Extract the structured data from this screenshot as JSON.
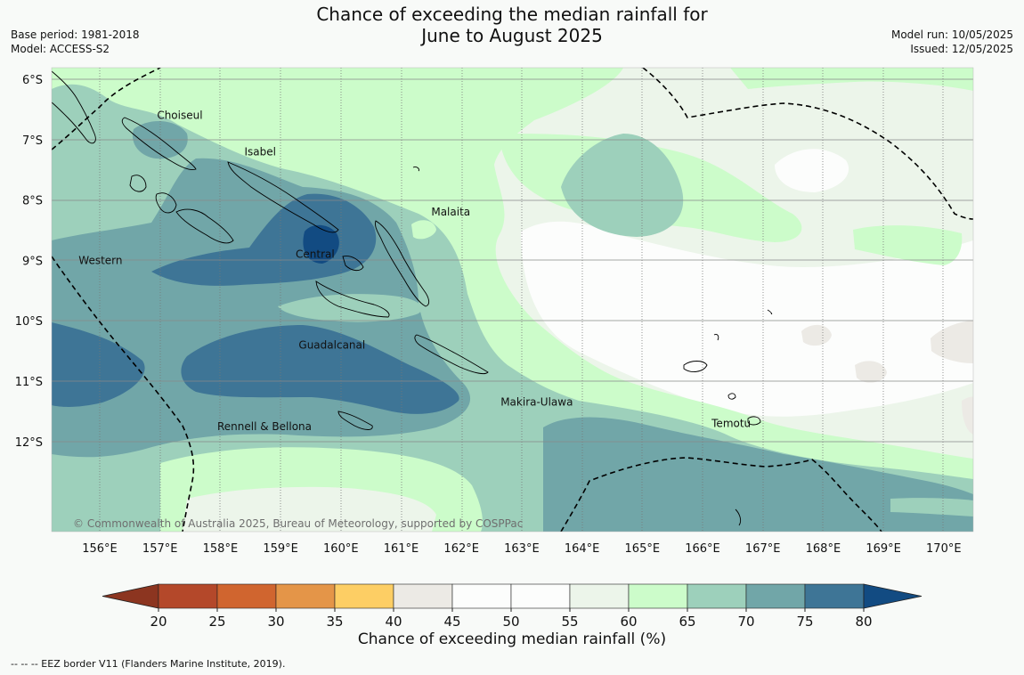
{
  "title": {
    "line1": "Chance of exceeding the median rainfall for",
    "line2": "June to August 2025"
  },
  "meta_left": {
    "base_period": "Base period: 1981-2018",
    "model": "Model: ACCESS-S2"
  },
  "meta_right": {
    "model_run": "Model run: 10/05/2025",
    "issued": "Issued: 12/05/2025"
  },
  "map": {
    "lat_labels": [
      "6°S",
      "7°S",
      "8°S",
      "9°S",
      "10°S",
      "11°S",
      "12°S"
    ],
    "lon_labels": [
      "156°E",
      "157°E",
      "158°E",
      "159°E",
      "160°E",
      "161°E",
      "162°E",
      "163°E",
      "164°E",
      "165°E",
      "166°E",
      "167°E",
      "168°E",
      "169°E",
      "170°E"
    ],
    "regions": [
      {
        "name": "Choiseul",
        "lon": 156.95,
        "lat": -6.6
      },
      {
        "name": "Isabel",
        "lon": 158.4,
        "lat": -7.2
      },
      {
        "name": "Malaita",
        "lon": 161.5,
        "lat": -8.2
      },
      {
        "name": "Western",
        "lon": 155.65,
        "lat": -9.0
      },
      {
        "name": "Central",
        "lon": 159.25,
        "lat": -8.9
      },
      {
        "name": "Guadalcanal",
        "lon": 159.3,
        "lat": -10.4
      },
      {
        "name": "Makira-Ulawa",
        "lon": 162.65,
        "lat": -11.35
      },
      {
        "name": "Temotu",
        "lon": 166.15,
        "lat": -11.7
      },
      {
        "name": "Rennell & Bellona",
        "lon": 157.95,
        "lat": -11.75
      }
    ],
    "copyright": "© Commonwealth of Australia 2025, Bureau of Meteorology, supported by COSPPac",
    "colors": {
      "ocean_light": "#fcfdfc",
      "c45_50": "#eceae5",
      "c55_60": "#ecf5ea",
      "c60_65": "#ccfcca",
      "c65_70": "#9dd0bb",
      "c70_75": "#71a6a8",
      "c75_80": "#3e7596",
      "c80_plus": "#124b82"
    }
  },
  "colorbar": {
    "ticks": [
      "20",
      "25",
      "30",
      "35",
      "40",
      "45",
      "50",
      "55",
      "60",
      "65",
      "70",
      "75",
      "80"
    ],
    "colors": [
      "#b4482a",
      "#d0652f",
      "#e49548",
      "#fdce64",
      "#eceae5",
      "#fcfdfc",
      "#fcfdfc",
      "#ecf5ea",
      "#ccfcca",
      "#9dd0bb",
      "#71a6a8",
      "#3e7596"
    ],
    "low_color": "#8c3520",
    "high_color": "#124b82",
    "label": "Chance of exceeding median rainfall (%)"
  },
  "footer": "--  --  -- EEZ border V11 (Flanders Marine Institute, 2019)."
}
